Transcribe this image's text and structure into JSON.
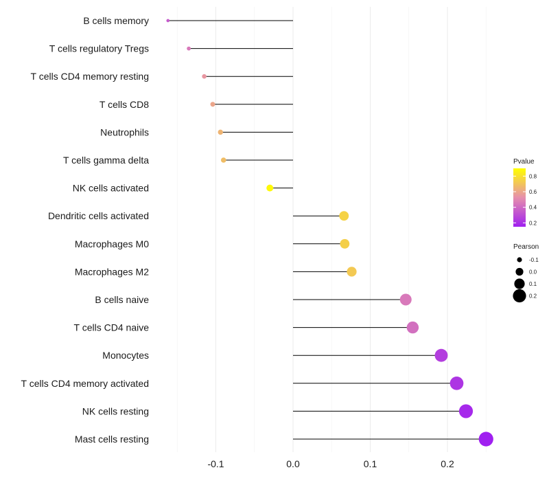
{
  "chart_data": {
    "type": "lollipop",
    "categories": [
      "B cells memory",
      "T cells regulatory  Tregs",
      "T cells CD4 memory resting",
      "T cells CD8",
      "Neutrophils",
      "T cells gamma delta",
      "NK cells activated",
      "Dendritic cells activated",
      "Macrophages M0",
      "Macrophages M2",
      "B cells naive",
      "T cells CD4 naive",
      "Monocytes",
      "T cells CD4 memory activated",
      "NK cells resting",
      "Mast cells resting"
    ],
    "pearson": [
      -0.162,
      -0.135,
      -0.115,
      -0.104,
      -0.094,
      -0.09,
      -0.03,
      0.066,
      0.067,
      0.076,
      0.146,
      0.155,
      0.192,
      0.212,
      0.224,
      0.25
    ],
    "pvalue": [
      0.35,
      0.45,
      0.55,
      0.6,
      0.65,
      0.68,
      0.88,
      0.75,
      0.74,
      0.72,
      0.45,
      0.42,
      0.25,
      0.22,
      0.18,
      0.12
    ],
    "xlim": [
      -0.18,
      0.27
    ],
    "x_ticks": [
      -0.1,
      0.0,
      0.1,
      0.2
    ],
    "x_tick_labels": [
      "-0.1",
      "0.0",
      "0.1",
      "0.2"
    ],
    "title": "",
    "xlabel": "",
    "ylabel": "",
    "grid": "vertical",
    "legend": {
      "color_title": "Pvalue",
      "color_ticks": [
        0.8,
        0.6,
        0.4,
        0.2
      ],
      "color_tick_labels": [
        "0.8",
        "0.6",
        "0.4",
        "0.2"
      ],
      "color_range": [
        0.15,
        0.9
      ],
      "color_low": "#a020f0",
      "color_mid": "#e68fac",
      "color_high": "#ffff00",
      "size_title": "Pearson",
      "size_values": [
        -0.1,
        0.0,
        0.1,
        0.2
      ],
      "size_labels": [
        "-0.1",
        "0.0",
        "0.1",
        "0.2"
      ],
      "placement": "right"
    }
  }
}
